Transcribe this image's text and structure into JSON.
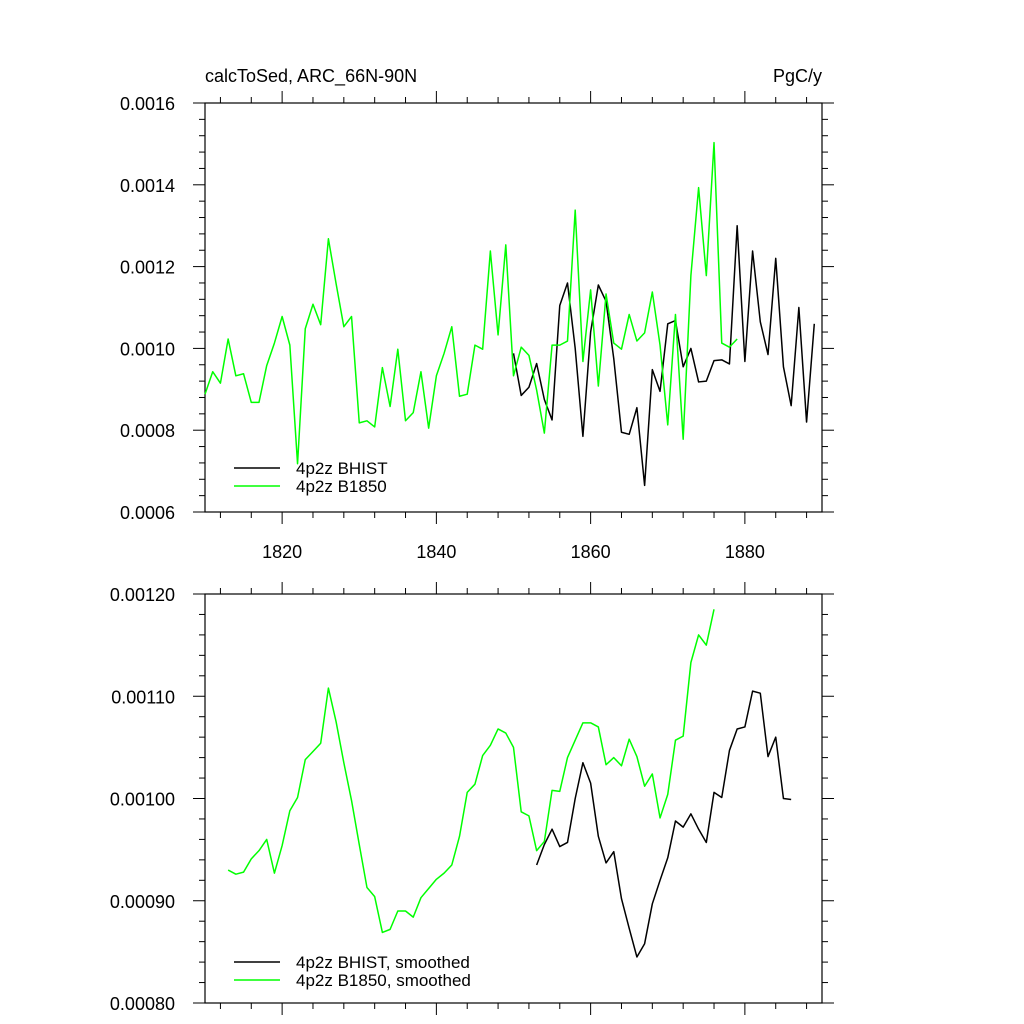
{
  "chart_data": [
    {
      "type": "line",
      "title": "calcToSed, ARC_66N-90N",
      "units": "PgC/y",
      "xlim": [
        1810,
        1890
      ],
      "ylim": [
        0.0006,
        0.0016
      ],
      "x_major_ticks": [
        1820,
        1840,
        1860,
        1880
      ],
      "x_tick_labels": [
        "1820",
        "1840",
        "1860",
        "1880"
      ],
      "y_major_ticks": [
        0.0006,
        0.0008,
        0.001,
        0.0012,
        0.0014,
        0.0016
      ],
      "y_tick_labels": [
        "0.0006",
        "0.0008",
        "0.0010",
        "0.0012",
        "0.0014",
        "0.0016"
      ],
      "grid": false,
      "legend_position": "bottom-left",
      "series": [
        {
          "name": "4p2z BHIST",
          "color": "#000000",
          "x_start": 1850,
          "values": [
            0.000988,
            0.000885,
            0.000905,
            0.000963,
            0.000875,
            0.000825,
            0.001105,
            0.00116,
            0.001,
            0.000785,
            0.00104,
            0.001155,
            0.001115,
            0.000975,
            0.000795,
            0.00079,
            0.000855,
            0.000665,
            0.000948,
            0.000895,
            0.00106,
            0.001068,
            0.000955,
            0.001,
            0.000918,
            0.00092,
            0.00097,
            0.000972,
            0.000962,
            0.0013,
            0.000968,
            0.001238,
            0.001065,
            0.000985,
            0.00122,
            0.000955,
            0.00086,
            0.0011,
            0.00082,
            0.00106
          ]
        },
        {
          "name": "4p2z B1850",
          "color": "#00ff00",
          "x_start": 1810,
          "values": [
            0.000888,
            0.000943,
            0.000915,
            0.001023,
            0.000933,
            0.000938,
            0.000868,
            0.000868,
            0.000958,
            0.001013,
            0.001078,
            0.001008,
            0.000718,
            0.001048,
            0.001108,
            0.001058,
            0.001268,
            0.001158,
            0.001053,
            0.001078,
            0.000818,
            0.000823,
            0.000808,
            0.000953,
            0.000858,
            0.000998,
            0.000823,
            0.000843,
            0.000943,
            0.000805,
            0.000933,
            0.000988,
            0.001053,
            0.000883,
            0.000888,
            0.001008,
            0.000998,
            0.001238,
            0.001033,
            0.001253,
            0.000933,
            0.001003,
            0.000983,
            0.000898,
            0.000793,
            0.001008,
            0.001008,
            0.001018,
            0.001338,
            0.000968,
            0.001143,
            0.000908,
            0.001133,
            0.001013,
            0.000998,
            0.001083,
            0.001018,
            0.001038,
            0.001138,
            0.001008,
            0.000813,
            0.001083,
            0.000778,
            0.001178,
            0.001393,
            0.001178,
            0.001503,
            0.001013,
            0.001003,
            0.001023
          ]
        }
      ]
    },
    {
      "type": "line",
      "xlim": [
        1810,
        1890
      ],
      "ylim": [
        0.0008,
        0.0012
      ],
      "y_major_ticks": [
        0.0008,
        0.0009,
        0.001,
        0.0011,
        0.0012
      ],
      "y_tick_labels": [
        "0.00080",
        "0.00090",
        "0.00100",
        "0.00110",
        "0.00120"
      ],
      "grid": false,
      "legend_position": "bottom-left",
      "series": [
        {
          "name": "4p2z BHIST, smoothed",
          "color": "#000000",
          "x_start": 1853,
          "values": [
            0.000935,
            0.000955,
            0.00097,
            0.000953,
            0.000957,
            0.001,
            0.001035,
            0.001015,
            0.000963,
            0.000937,
            0.000948,
            0.000902,
            0.000873,
            0.000845,
            0.000858,
            0.000897,
            0.00092,
            0.000942,
            0.000978,
            0.000972,
            0.000985,
            0.00097,
            0.000957,
            0.001006,
            0.001001,
            0.001047,
            0.001068,
            0.00107,
            0.001105,
            0.001103,
            0.001041,
            0.00106,
            0.001,
            0.000999
          ]
        },
        {
          "name": "4p2z B1850, smoothed",
          "color": "#00ff00",
          "x_start": 1813,
          "values": [
            0.00093,
            0.000926,
            0.000928,
            0.000941,
            0.000949,
            0.00096,
            0.000927,
            0.000954,
            0.000988,
            0.001001,
            0.001038,
            0.001046,
            0.001054,
            0.001108,
            0.001075,
            0.001035,
            0.000998,
            0.000955,
            0.000913,
            0.000904,
            0.000869,
            0.000872,
            0.00089,
            0.00089,
            0.000884,
            0.000903,
            0.000912,
            0.000921,
            0.000927,
            0.000935,
            0.000963,
            0.001006,
            0.001014,
            0.001042,
            0.001052,
            0.001068,
            0.001064,
            0.00105,
            0.000987,
            0.000983,
            0.000949,
            0.000958,
            0.001008,
            0.001007,
            0.00104,
            0.001057,
            0.001074,
            0.001074,
            0.00107,
            0.001033,
            0.00104,
            0.001032,
            0.001058,
            0.001041,
            0.001012,
            0.001024,
            0.000981,
            0.001004,
            0.001057,
            0.001061,
            0.001133,
            0.00116,
            0.00115,
            0.001185
          ]
        }
      ]
    }
  ]
}
